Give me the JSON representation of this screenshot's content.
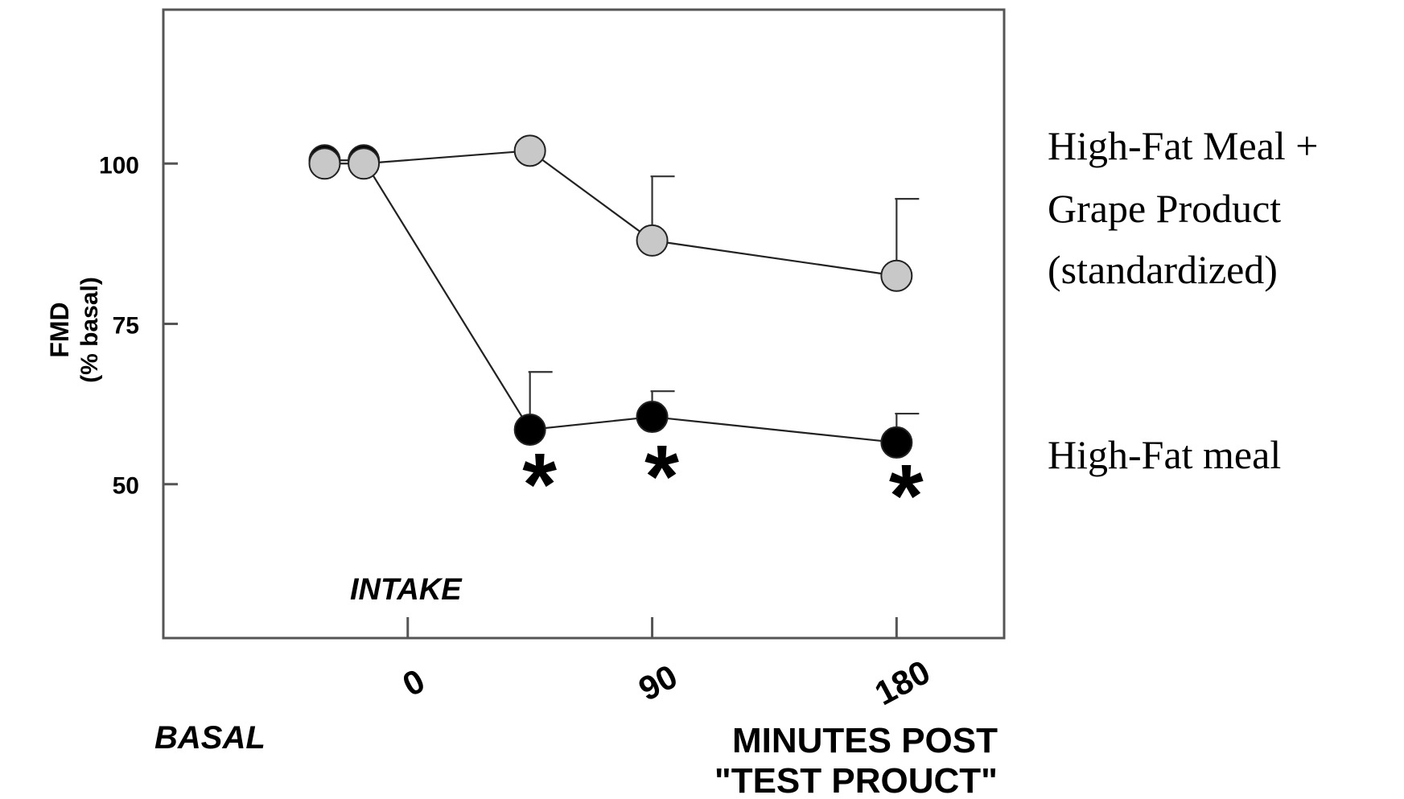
{
  "chart_data": {
    "type": "line",
    "xlabel_lines": [
      "MINUTES POST",
      "\"TEST PROUCT\""
    ],
    "ylabel_lines": [
      "FMD",
      "(% basal)"
    ],
    "ylim": [
      26,
      124
    ],
    "xlim": [
      -50,
      122
    ],
    "yticks": [
      50,
      75,
      100
    ],
    "xticks": [
      {
        "value": 0,
        "label": "0"
      },
      {
        "value": 50,
        "label": "90"
      },
      {
        "value": 100,
        "label": "180"
      }
    ],
    "annotations": {
      "intake": "INTAKE",
      "basal": "BASAL",
      "significance_marker": "*"
    },
    "series": [
      {
        "legend_lines": [
          "High-Fat Meal +",
          "Grape Product",
          "(standardized)"
        ],
        "marker_color": "#c8c8c8",
        "points": [
          {
            "x": -17,
            "y": 100
          },
          {
            "x": -9,
            "y": 100
          },
          {
            "x": 25,
            "y": 102
          },
          {
            "x": 50,
            "y": 88,
            "err": 10
          },
          {
            "x": 100,
            "y": 82.5,
            "err": 12
          }
        ]
      },
      {
        "legend_lines": [
          "High-Fat meal"
        ],
        "marker_color": "#000000",
        "points": [
          {
            "x": -17,
            "y": 100.5
          },
          {
            "x": -9,
            "y": 100.5
          },
          {
            "x": 25,
            "y": 58.5,
            "err": 9
          },
          {
            "x": 50,
            "y": 60.5,
            "err": 4
          },
          {
            "x": 100,
            "y": 56.5,
            "err": 4.5
          }
        ]
      }
    ],
    "significant_x": [
      25,
      50,
      100
    ]
  }
}
